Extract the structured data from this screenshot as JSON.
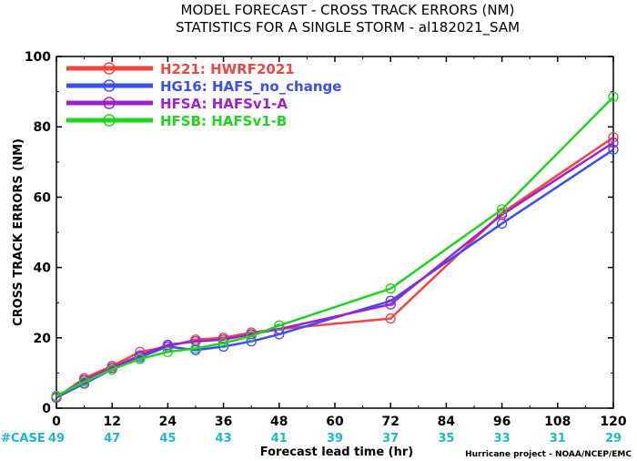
{
  "chart_data": {
    "type": "line",
    "title": "MODEL FORECAST - CROSS TRACK ERRORS (NM)",
    "subtitle": "STATISTICS FOR A SINGLE STORM - al182021_SAM",
    "xlabel": "Forecast lead time (hr)",
    "ylabel": "CROSS TRACK ERRORS (NM)",
    "xlim": [
      0,
      120
    ],
    "ylim": [
      0,
      100
    ],
    "x_ticks": [
      0,
      12,
      24,
      36,
      48,
      60,
      72,
      84,
      96,
      108,
      120
    ],
    "y_ticks": [
      0,
      20,
      40,
      60,
      80,
      100
    ],
    "grid": false,
    "legend_position": "top-left",
    "series": [
      {
        "name": "H221: HWRF2021",
        "color": "#f04545",
        "x": [
          0,
          6,
          12,
          18,
          24,
          30,
          36,
          42,
          48,
          72,
          96,
          120
        ],
        "y": [
          3.0,
          8.5,
          12.0,
          16.0,
          17.5,
          19.5,
          20.0,
          21.5,
          22.5,
          25.5,
          55.5,
          77.0
        ]
      },
      {
        "name": "HG16: HAFS_no_change",
        "color": "#3b4ef0",
        "x": [
          0,
          6,
          12,
          18,
          24,
          30,
          36,
          42,
          48,
          72,
          96,
          120
        ],
        "y": [
          3.0,
          7.0,
          11.0,
          14.5,
          17.5,
          16.5,
          17.5,
          19.0,
          21.0,
          30.5,
          52.5,
          73.5
        ]
      },
      {
        "name": "HFSA: HAFSv1-A",
        "color": "#a020d0",
        "x": [
          0,
          6,
          12,
          18,
          24,
          30,
          36,
          42,
          48,
          72,
          96,
          120
        ],
        "y": [
          3.0,
          8.0,
          11.5,
          15.0,
          18.0,
          19.0,
          19.5,
          21.0,
          22.5,
          29.5,
          55.0,
          75.5
        ]
      },
      {
        "name": "HFSB: HAFSv1-B",
        "color": "#22d322",
        "x": [
          0,
          6,
          12,
          18,
          24,
          30,
          36,
          42,
          48,
          72,
          96,
          120
        ],
        "y": [
          3.5,
          7.5,
          11.0,
          14.0,
          16.0,
          17.0,
          18.5,
          20.5,
          23.5,
          34.0,
          56.5,
          88.5
        ]
      }
    ],
    "cases": {
      "label": "#CASE",
      "color": "#1fb8c8",
      "x": [
        0,
        12,
        24,
        36,
        48,
        60,
        72,
        84,
        96,
        108,
        120
      ],
      "values": [
        "49",
        "47",
        "45",
        "43",
        "41",
        "39",
        "37",
        "35",
        "33",
        "31",
        "29"
      ]
    },
    "credit": "Hurricane project - NOAA/NCEP/EMC"
  }
}
